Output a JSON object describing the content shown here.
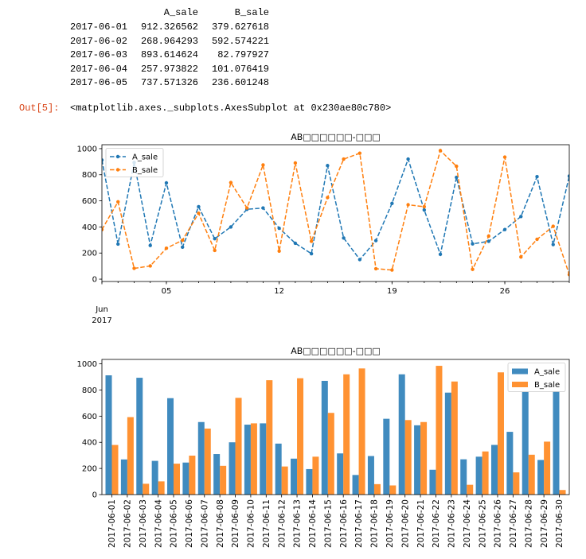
{
  "notebook": {
    "dataframe": {
      "columns": [
        "A_sale",
        "B_sale"
      ],
      "rows": [
        {
          "index": "2017-06-01",
          "A_sale": "912.326562",
          "B_sale": "379.627618"
        },
        {
          "index": "2017-06-02",
          "A_sale": "268.964293",
          "B_sale": "592.574221"
        },
        {
          "index": "2017-06-03",
          "A_sale": "893.614624",
          "B_sale": "82.797927"
        },
        {
          "index": "2017-06-04",
          "A_sale": "257.973822",
          "B_sale": "101.076419"
        },
        {
          "index": "2017-06-05",
          "A_sale": "737.571326",
          "B_sale": "236.601248"
        }
      ]
    },
    "output": {
      "prompt": "Out[5]:",
      "text": "<matplotlib.axes._subplots.AxesSubplot at 0x230ae80c780>"
    }
  },
  "colors": {
    "out_prompt": "#d84315"
  },
  "chart_data": [
    {
      "type": "line",
      "title": "AB□□□□□□-□□□",
      "x": [
        "2017-06-01",
        "2017-06-02",
        "2017-06-03",
        "2017-06-04",
        "2017-06-05",
        "2017-06-06",
        "2017-06-07",
        "2017-06-08",
        "2017-06-09",
        "2017-06-10",
        "2017-06-11",
        "2017-06-12",
        "2017-06-13",
        "2017-06-14",
        "2017-06-15",
        "2017-06-16",
        "2017-06-17",
        "2017-06-18",
        "2017-06-19",
        "2017-06-20",
        "2017-06-21",
        "2017-06-22",
        "2017-06-23",
        "2017-06-24",
        "2017-06-25",
        "2017-06-26",
        "2017-06-27",
        "2017-06-28",
        "2017-06-29",
        "2017-06-30"
      ],
      "xticks": [
        {
          "date": "2017-06-05",
          "label": "05"
        },
        {
          "date": "2017-06-12",
          "label": "12"
        },
        {
          "date": "2017-06-19",
          "label": "19"
        },
        {
          "date": "2017-06-26",
          "label": "26"
        }
      ],
      "xtick_month": {
        "date": "2017-06-01",
        "month": "Jun",
        "year": "2017"
      },
      "series": [
        {
          "name": "A_sale",
          "color": "#1f77b4",
          "values": [
            912.33,
            268.96,
            893.61,
            257.97,
            737.57,
            245,
            555,
            310,
            400,
            535,
            545,
            390,
            275,
            195,
            870,
            315,
            150,
            295,
            580,
            920,
            530,
            190,
            780,
            270,
            290,
            380,
            480,
            785,
            265,
            790
          ]
        },
        {
          "name": "B_sale",
          "color": "#ff7f0e",
          "values": [
            379.63,
            592.57,
            82.8,
            101.08,
            236.6,
            298,
            505,
            220,
            740,
            545,
            875,
            215,
            890,
            290,
            625,
            920,
            965,
            80,
            70,
            570,
            555,
            985,
            865,
            75,
            330,
            935,
            170,
            305,
            405,
            35
          ]
        }
      ],
      "yticks": [
        0,
        200,
        400,
        600,
        800,
        1000
      ],
      "ylim": [
        -18,
        1030
      ],
      "legend": "upper-left",
      "grid": false
    },
    {
      "type": "bar",
      "title": "AB□□□□□□-□□□",
      "categories": [
        "2017-06-01",
        "2017-06-02",
        "2017-06-03",
        "2017-06-04",
        "2017-06-05",
        "2017-06-06",
        "2017-06-07",
        "2017-06-08",
        "2017-06-09",
        "2017-06-10",
        "2017-06-11",
        "2017-06-12",
        "2017-06-13",
        "2017-06-14",
        "2017-06-15",
        "2017-06-16",
        "2017-06-17",
        "2017-06-18",
        "2017-06-19",
        "2017-06-20",
        "2017-06-21",
        "2017-06-22",
        "2017-06-23",
        "2017-06-24",
        "2017-06-25",
        "2017-06-26",
        "2017-06-27",
        "2017-06-28",
        "2017-06-29",
        "2017-06-30"
      ],
      "series": [
        {
          "name": "A_sale",
          "color": "#1f77b4",
          "values": [
            912.33,
            268.96,
            893.61,
            257.97,
            737.57,
            245,
            555,
            310,
            400,
            535,
            545,
            390,
            275,
            195,
            870,
            315,
            150,
            295,
            580,
            920,
            530,
            190,
            780,
            270,
            290,
            380,
            480,
            785,
            265,
            790
          ]
        },
        {
          "name": "B_sale",
          "color": "#ff7f0e",
          "values": [
            379.63,
            592.57,
            82.8,
            101.08,
            236.6,
            298,
            505,
            220,
            740,
            545,
            875,
            215,
            890,
            290,
            625,
            920,
            965,
            80,
            70,
            570,
            555,
            985,
            865,
            75,
            330,
            935,
            170,
            305,
            405,
            35
          ]
        }
      ],
      "yticks": [
        0,
        200,
        400,
        600,
        800,
        1000
      ],
      "ylim": [
        0,
        1034
      ],
      "legend": "upper-right",
      "grid": false
    }
  ]
}
